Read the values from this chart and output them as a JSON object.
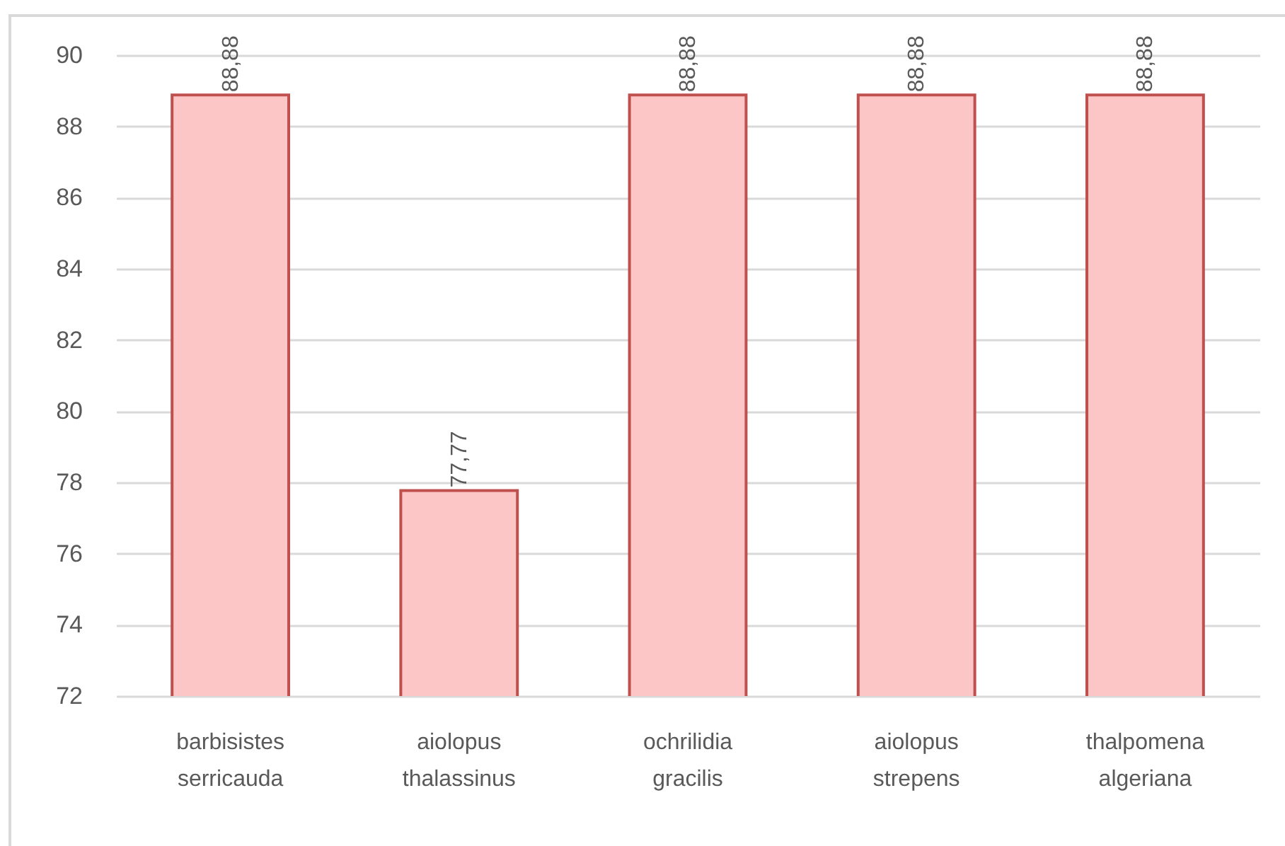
{
  "chart_data": {
    "type": "bar",
    "categories": [
      "barbisistes serricauda",
      "aiolopus thalassinus",
      "ochrilidia gracilis",
      "aiolopus strepens",
      "thalpomena algeriana"
    ],
    "values": [
      88.88,
      77.77,
      88.88,
      88.88,
      88.88
    ],
    "value_labels": [
      "88,88",
      "77,77",
      "88,88",
      "88,88",
      "88,88"
    ],
    "color": "#fcc6c6",
    "ylim": [
      72,
      90
    ],
    "yticks": [
      72,
      74,
      76,
      78,
      80,
      82,
      84,
      86,
      88,
      90
    ],
    "grid": "y"
  }
}
